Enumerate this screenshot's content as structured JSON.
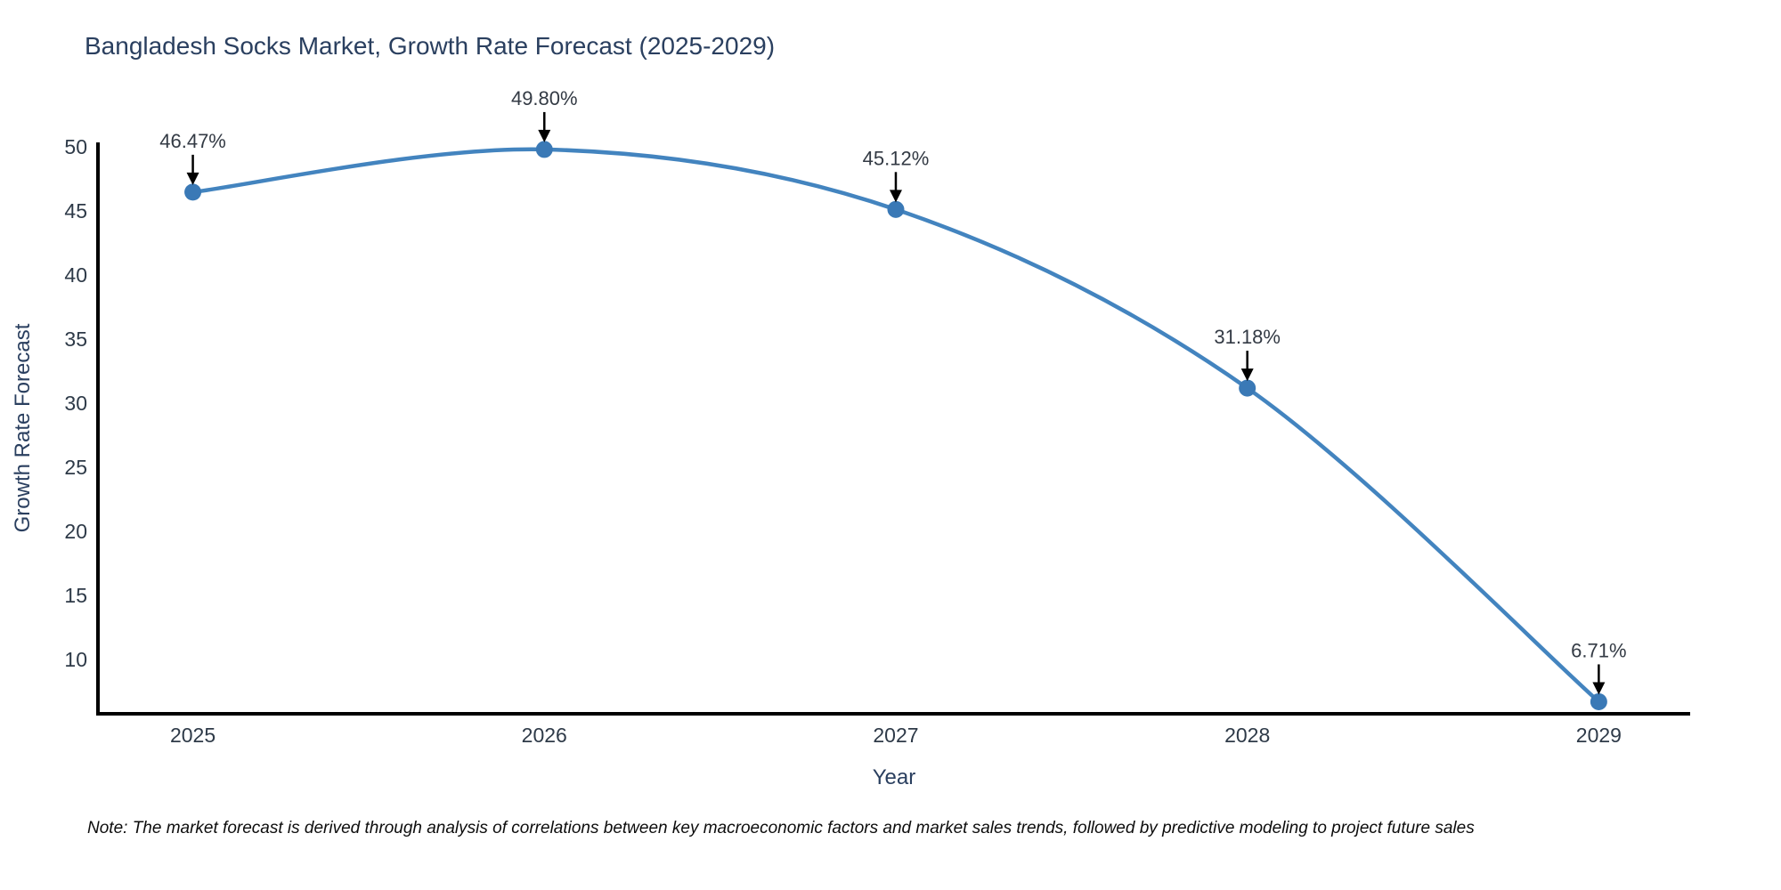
{
  "chart_data": {
    "type": "line",
    "title": "Bangladesh Socks Market, Growth Rate Forecast (2025-2029)",
    "xlabel": "Year",
    "ylabel": "Growth Rate Forecast",
    "x": [
      2025,
      2026,
      2027,
      2028,
      2029
    ],
    "series": [
      {
        "name": "Growth Rate Forecast",
        "values": [
          46.47,
          49.8,
          45.12,
          31.18,
          6.71
        ],
        "point_labels": [
          "46.47%",
          "49.80%",
          "45.12%",
          "31.18%",
          "6.71%"
        ]
      }
    ],
    "yticks": [
      10,
      15,
      20,
      25,
      30,
      35,
      40,
      45,
      50
    ],
    "xlim": [
      2024.73,
      2029.26
    ],
    "ylim": [
      5.77,
      50.35
    ],
    "grid": false,
    "legend_position": "none",
    "line_shape": "spline",
    "line_color": "#4384bf",
    "marker_color": "#3a79b6",
    "axis_color": "#000000",
    "tick_color": "#2e3a48",
    "annotation_color": "#333a44",
    "title_color": "#2a3f5f"
  },
  "note": {
    "text": "Note: The market forecast is derived through analysis of correlations between key macroeconomic factors and market sales trends, followed by predictive modeling to project future sales"
  }
}
